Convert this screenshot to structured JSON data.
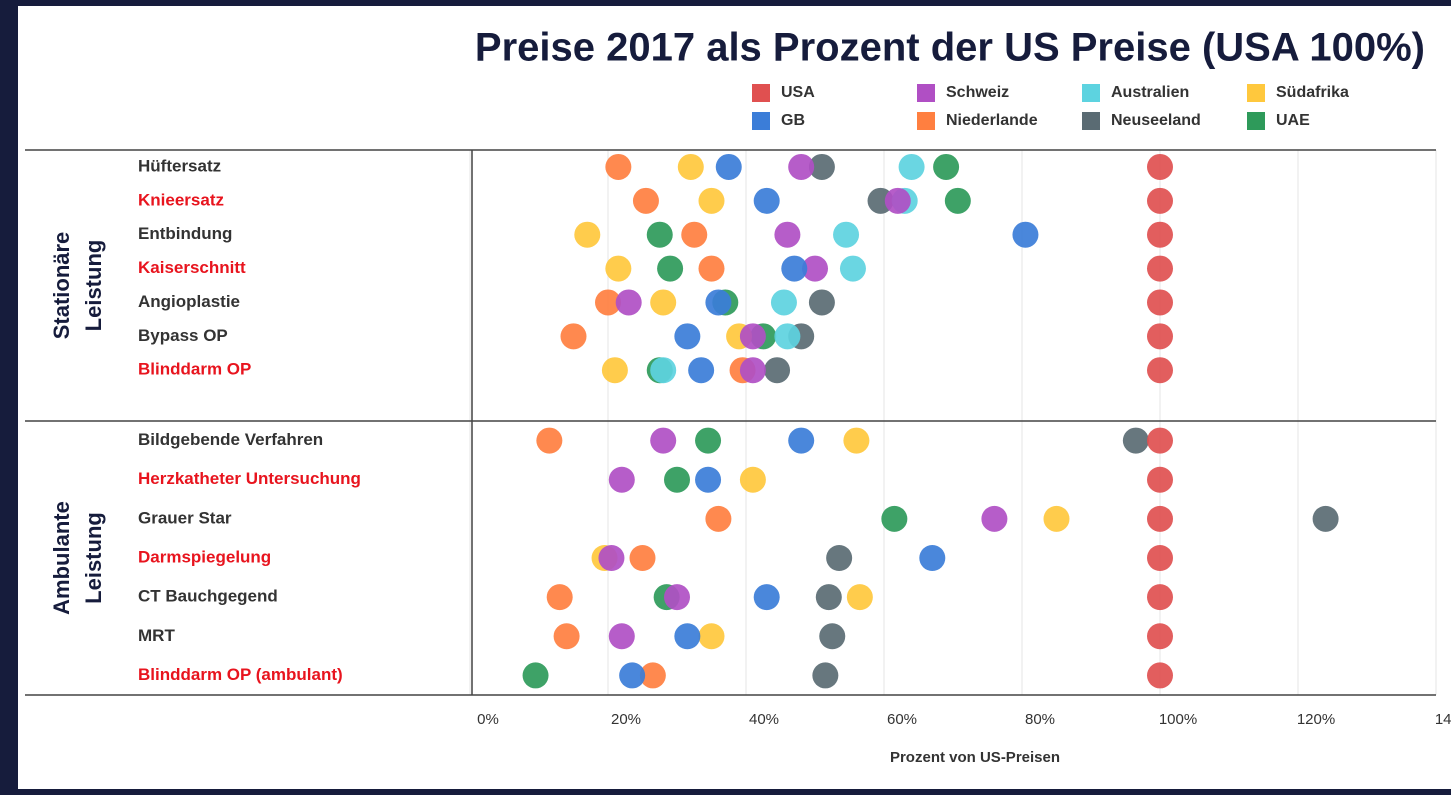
{
  "chart_data": {
    "type": "dot",
    "title": "Preise 2017 als Prozent der US Preise (USA 100%)",
    "x_label": "Prozent von US-Preisen",
    "categories": [
      "Hüftersatz",
      "Knieersatz",
      "Entbindung",
      "Kaiserschnitt",
      "Angioplastie",
      "Bypass OP",
      "Blinddarm OP",
      null,
      "Bildgebende Verfahren",
      "Herzkatheter Untersuchung",
      "Grauer Star",
      "Darmspiegelung",
      "CT Bauchgegend",
      "MRT",
      "Blinddarm OP (ambulant)"
    ],
    "category_colors": [
      "#333333",
      "#e8141e",
      "#333333",
      "#e8141e",
      "#333333",
      "#333333",
      "#e8141e",
      null,
      "#333333",
      "#e8141e",
      "#333333",
      "#e8141e",
      "#333333",
      "#333333",
      "#e8141e"
    ],
    "groups": [
      {
        "lines": [
          "Stationäre",
          "Leistung"
        ]
      },
      {
        "lines": [
          "Ambulante",
          "Leistung"
        ]
      }
    ],
    "series": [
      {
        "name": "USA",
        "color": "#e05050",
        "values": [
          100,
          100,
          100,
          100,
          100,
          100,
          100,
          null,
          100,
          100,
          100,
          100,
          100,
          100,
          100
        ]
      },
      {
        "name": "GB",
        "color": "#3b7dd8",
        "values": [
          37.5,
          43,
          80.5,
          47,
          36,
          31.5,
          33.5,
          null,
          48,
          34.5,
          null,
          67,
          43,
          31.5,
          23.5
        ]
      },
      {
        "name": "Schweiz",
        "color": "#b04fc4",
        "values": [
          48,
          62,
          46,
          50,
          23,
          41,
          41,
          null,
          28,
          22,
          76,
          20.5,
          30,
          22,
          null
        ]
      },
      {
        "name": "Niederlande",
        "color": "#ff7f40",
        "values": [
          21.5,
          25.5,
          32.5,
          35,
          20,
          15,
          39.5,
          null,
          11.5,
          null,
          36,
          25,
          13,
          14,
          26.5
        ]
      },
      {
        "name": "Australien",
        "color": "#5dd3e0",
        "values": [
          64,
          63,
          54.5,
          55.5,
          45.5,
          46,
          28,
          null,
          null,
          null,
          null,
          null,
          null,
          null,
          null
        ]
      },
      {
        "name": "Neuseeland",
        "color": "#5a6b73",
        "values": [
          51,
          59.5,
          null,
          null,
          51,
          48,
          44.5,
          null,
          96.5,
          null,
          124,
          53.5,
          52,
          52.5,
          51.5
        ]
      },
      {
        "name": "Südafrika",
        "color": "#ffc83d",
        "values": [
          32,
          35,
          17,
          21.5,
          28,
          39,
          21,
          null,
          56,
          41,
          85,
          19.5,
          56.5,
          35,
          null
        ]
      },
      {
        "name": "UAE",
        "color": "#2e9a5a",
        "values": [
          69,
          70.7,
          27.5,
          29,
          37,
          42.5,
          27.5,
          null,
          34.5,
          30,
          61.5,
          null,
          28.5,
          null,
          9.5
        ]
      }
    ],
    "xlim": [
      0,
      140
    ],
    "xticks": [
      {
        "value": 0,
        "label": "0%"
      },
      {
        "value": 20,
        "label": "20%"
      },
      {
        "value": 40,
        "label": "40%"
      },
      {
        "value": 60,
        "label": "60%"
      },
      {
        "value": 80,
        "label": "80%"
      },
      {
        "value": 100,
        "label": "100%"
      },
      {
        "value": 120,
        "label": "120%"
      },
      {
        "value": 140,
        "label": "140%"
      }
    ],
    "grid": true
  }
}
